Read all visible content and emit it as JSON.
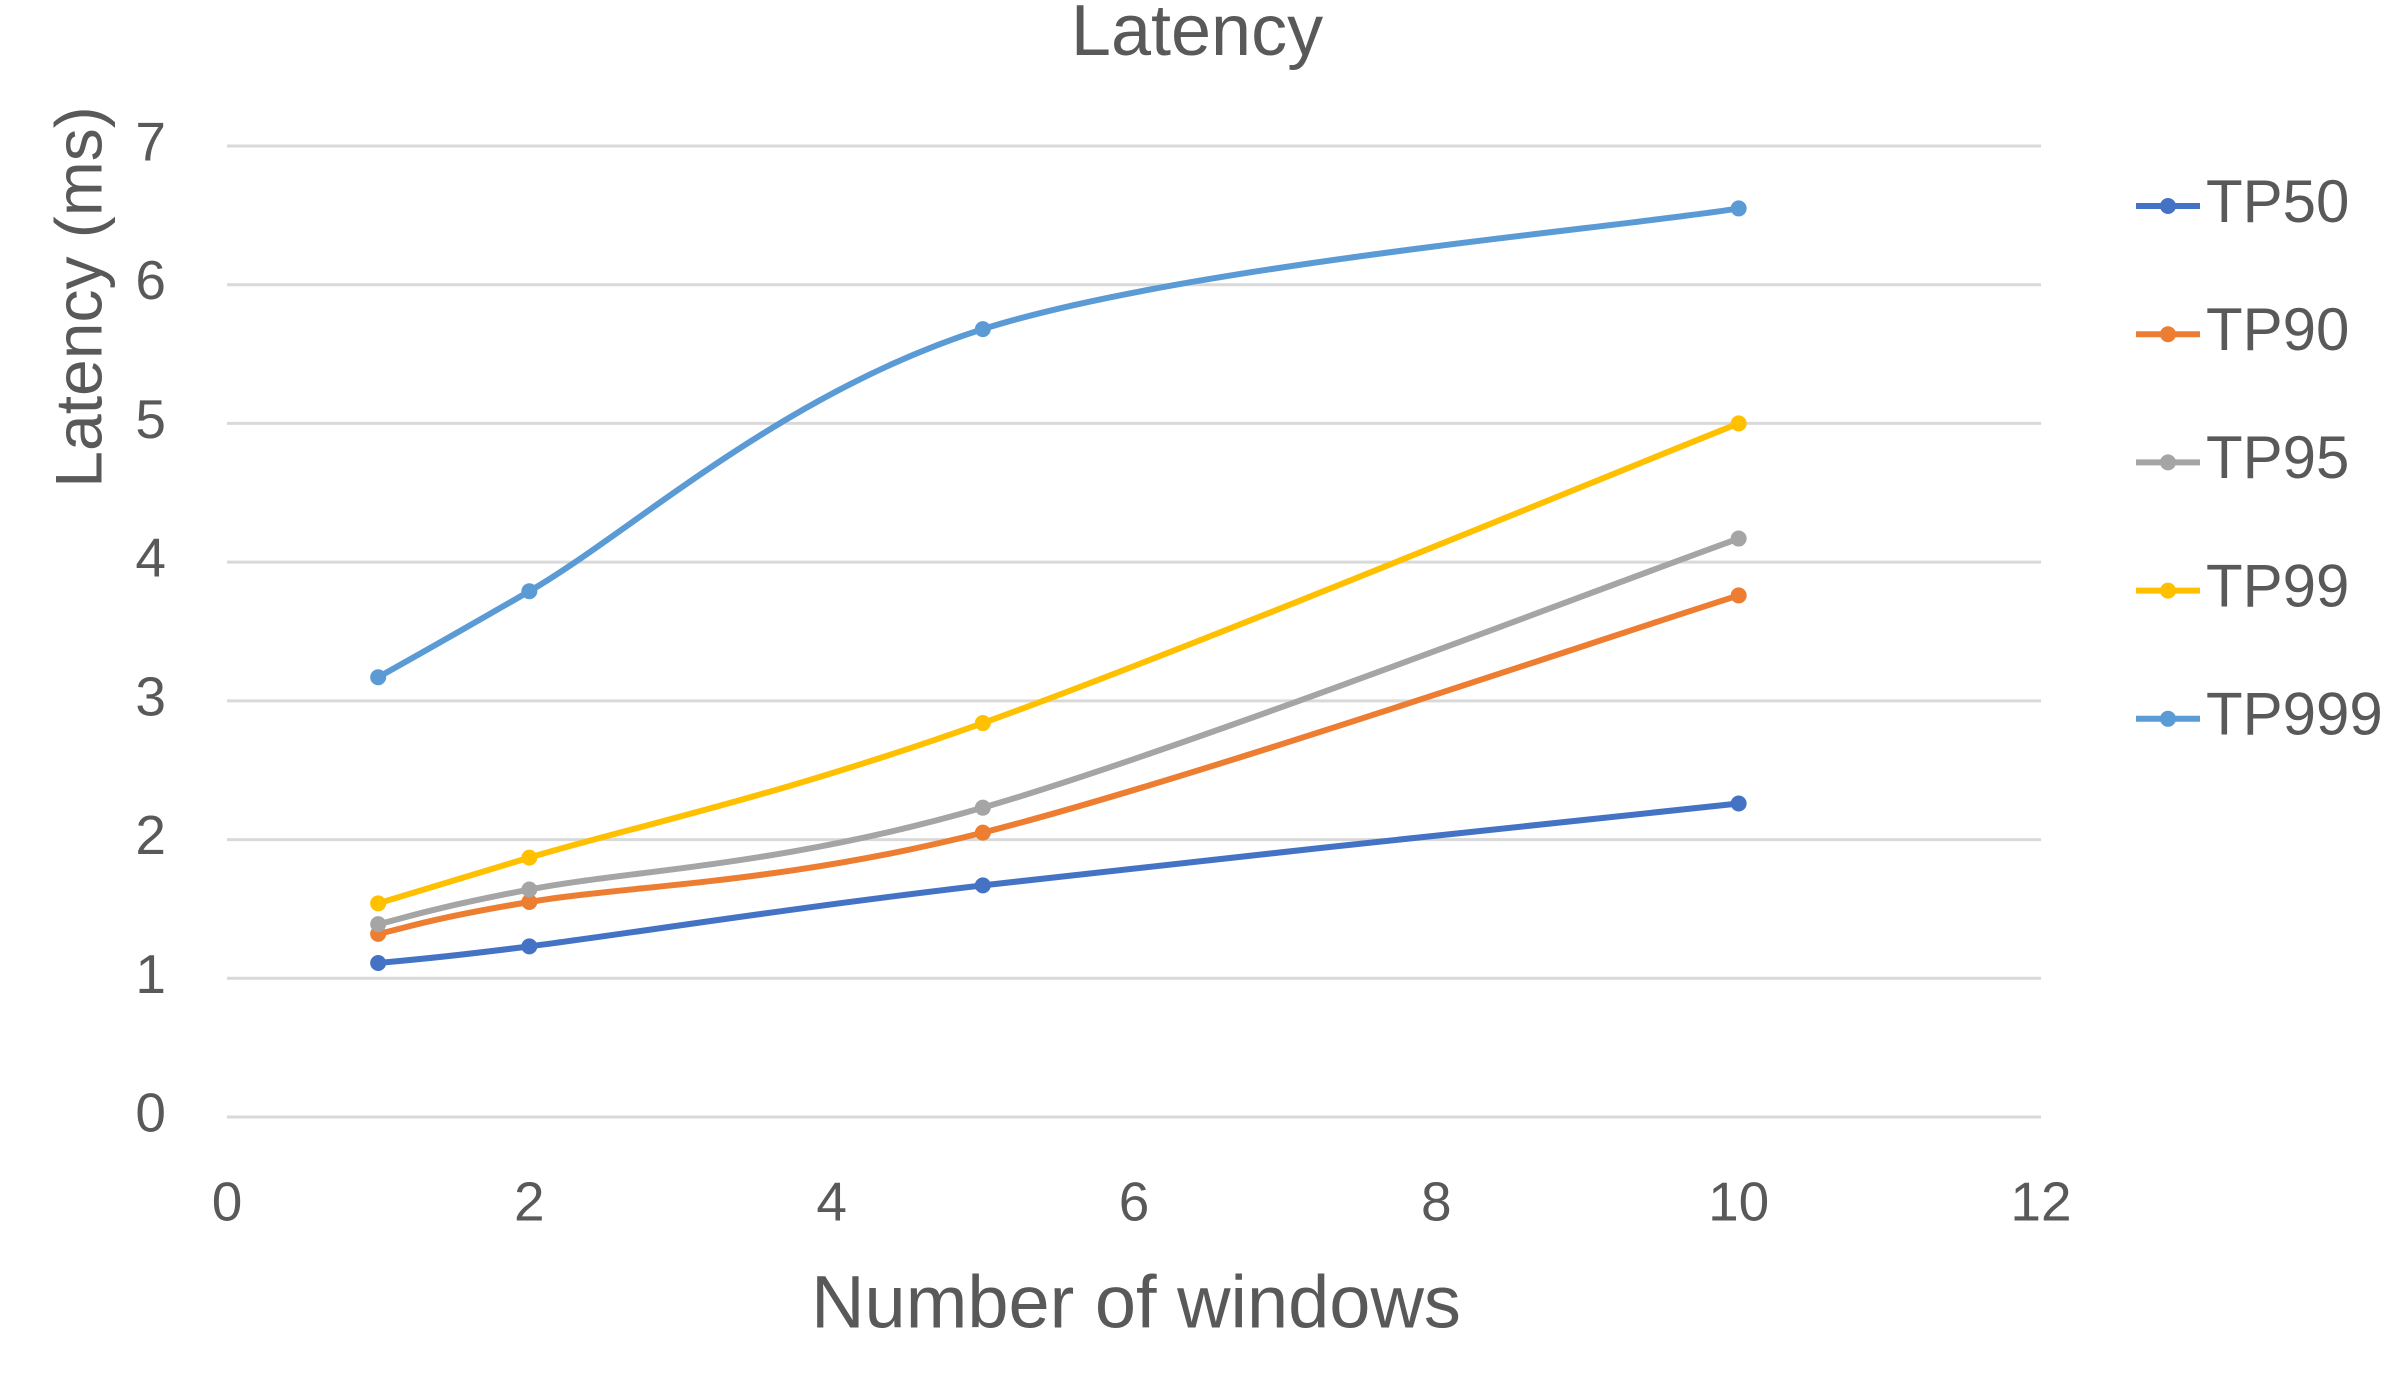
{
  "chart_data": {
    "type": "line",
    "title": "Latency",
    "x_label": "Number of windows",
    "y_label": "Latency  (ms)",
    "x": [
      1,
      2,
      5,
      10
    ],
    "series": [
      {
        "name": "TP50",
        "color": "#4472c4",
        "values": [
          1.11,
          1.23,
          1.67,
          2.26
        ]
      },
      {
        "name": "TP90",
        "color": "#ed7d31",
        "values": [
          1.32,
          1.55,
          2.05,
          3.76
        ]
      },
      {
        "name": "TP95",
        "color": "#a5a5a5",
        "values": [
          1.39,
          1.64,
          2.23,
          4.17
        ]
      },
      {
        "name": "TP99",
        "color": "#ffc000",
        "values": [
          1.54,
          1.87,
          2.84,
          5.0
        ]
      },
      {
        "name": "TP999",
        "color": "#5b9bd5",
        "values": [
          3.17,
          3.79,
          5.68,
          6.55
        ]
      }
    ],
    "xlim": [
      0,
      12
    ],
    "xticks": [
      0,
      2,
      4,
      6,
      8,
      10,
      12
    ],
    "ylim": [
      0,
      7
    ],
    "yticks": [
      0,
      1,
      2,
      3,
      4,
      5,
      6,
      7
    ],
    "grid": true,
    "smooth": true,
    "legend": "right"
  }
}
